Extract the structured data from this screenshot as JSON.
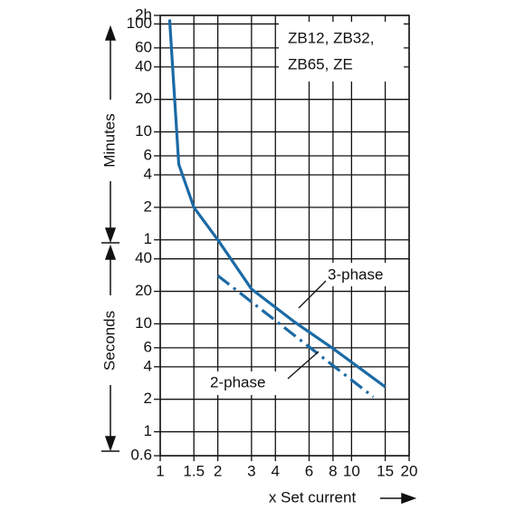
{
  "chart_data": {
    "type": "line",
    "xlabel": "x Set current",
    "ylabel_minutes": "Minutes",
    "ylabel_seconds": "Seconds",
    "note_lines": [
      "ZB12, ZB32,",
      "ZB65, ZE"
    ],
    "log_x": true,
    "log_y": true,
    "grid": true,
    "xlim": [
      1,
      20
    ],
    "xticks": [
      1,
      1.5,
      2,
      3,
      4,
      6,
      8,
      10,
      15,
      20
    ],
    "ylim": [
      0.6,
      7200
    ],
    "yticks": [
      {
        "value": 7200,
        "label": "2h"
      },
      {
        "value": 6000,
        "label": "100"
      },
      {
        "value": 3600,
        "label": "60"
      },
      {
        "value": 2400,
        "label": "40"
      },
      {
        "value": 1200,
        "label": "20"
      },
      {
        "value": 600,
        "label": "10"
      },
      {
        "value": 360,
        "label": "6"
      },
      {
        "value": 240,
        "label": "4"
      },
      {
        "value": 120,
        "label": "2"
      },
      {
        "value": 60,
        "label": "1"
      },
      40,
      20,
      10,
      6,
      4,
      2,
      1,
      0.6
    ],
    "series": [
      {
        "name": "3-phase",
        "color": "#1b6aa5",
        "dash": "solid",
        "x": [
          1.12,
          1.25,
          1.5,
          2,
          3,
          5,
          8,
          15
        ],
        "values": [
          6600,
          300,
          120,
          60,
          21,
          10.5,
          5.9,
          2.6
        ]
      },
      {
        "name": "2-phase",
        "color": "#1b6aa5",
        "dash": "dashdot",
        "x": [
          2,
          13
        ],
        "values": [
          28,
          2.1
        ]
      }
    ]
  }
}
